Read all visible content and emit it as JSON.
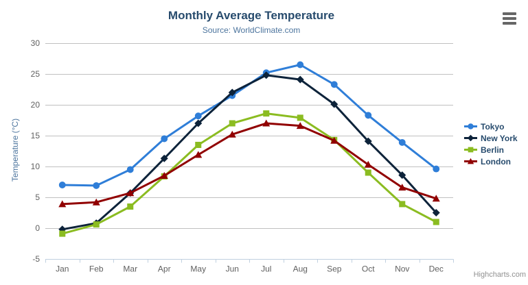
{
  "chart": {
    "title": "Monthly Average Temperature",
    "subtitle": "Source: WorldClimate.com",
    "credits": "Highcharts.com"
  },
  "icons": {
    "export_menu": "hamburger-icon"
  },
  "colors": {
    "background": "#ffffff",
    "title": "#274b6d",
    "subtitle": "#4d759e",
    "axis_title": "#4d759e",
    "axis_label": "#606060",
    "grid_line": "#c0c0c0",
    "axis_line": "#c0d0e0",
    "legend_text": "#274b6d",
    "credits": "#909090",
    "export_icon": "#666666"
  },
  "chart_data": {
    "type": "line",
    "title": "Monthly Average Temperature",
    "subtitle": "Source: WorldClimate.com",
    "xlabel": "",
    "ylabel": "Temperature (°C)",
    "ylim": [
      -5,
      30
    ],
    "ytick_interval": 5,
    "grid": true,
    "legend_position": "right",
    "categories": [
      "Jan",
      "Feb",
      "Mar",
      "Apr",
      "May",
      "Jun",
      "Jul",
      "Aug",
      "Sep",
      "Oct",
      "Nov",
      "Dec"
    ],
    "series": [
      {
        "name": "Tokyo",
        "color": "#2f7ed8",
        "marker": "circle",
        "values": [
          7.0,
          6.9,
          9.5,
          14.5,
          18.2,
          21.5,
          25.2,
          26.5,
          23.3,
          18.3,
          13.9,
          9.6
        ]
      },
      {
        "name": "New York",
        "color": "#0d233a",
        "marker": "diamond",
        "values": [
          -0.2,
          0.8,
          5.7,
          11.3,
          17.0,
          22.0,
          24.8,
          24.1,
          20.1,
          14.1,
          8.6,
          2.5
        ]
      },
      {
        "name": "Berlin",
        "color": "#8bbc21",
        "marker": "square",
        "values": [
          -0.9,
          0.6,
          3.5,
          8.4,
          13.5,
          17.0,
          18.6,
          17.9,
          14.3,
          9.0,
          3.9,
          1.0
        ]
      },
      {
        "name": "London",
        "color": "#910000",
        "marker": "triangle",
        "values": [
          3.9,
          4.2,
          5.7,
          8.5,
          11.9,
          15.2,
          17.0,
          16.6,
          14.2,
          10.3,
          6.6,
          4.8
        ]
      }
    ]
  }
}
